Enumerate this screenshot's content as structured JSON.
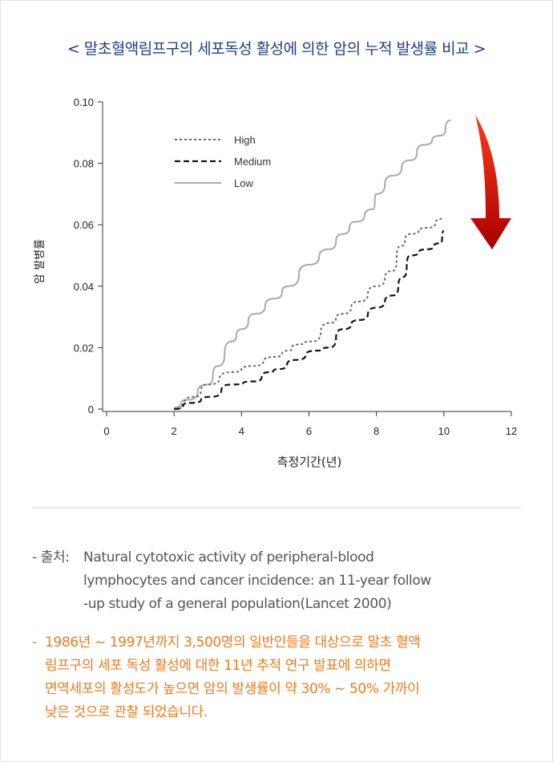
{
  "title": "< 말초혈액림프구의 세포독성 활성에 의한 암의 누적 발생률 비교 >",
  "chart_data": {
    "type": "line",
    "title": "< 말초혈액림프구의 세포독성 활성에 의한 암의 누적 발생률 비교 >",
    "xlabel": "측정기간(년)",
    "ylabel": "암 발병률",
    "xlim": [
      0,
      12
    ],
    "ylim": [
      0,
      0.1
    ],
    "xticks": [
      "0",
      "2",
      "4",
      "6",
      "8",
      "10",
      "12"
    ],
    "yticks": [
      "0",
      "0.02",
      "0.04",
      "0.06",
      "0.08",
      "0.10"
    ],
    "grid": false,
    "legend_position": "top-left",
    "series": [
      {
        "name": "High",
        "style": "dotted",
        "color": "#666666",
        "x": [
          2,
          2.6,
          3,
          3.7,
          4.3,
          5,
          5.4,
          5.6,
          6.1,
          6.6,
          7,
          7.5,
          8,
          8.5,
          8.7,
          9,
          9.5,
          10
        ],
        "y": [
          0,
          0.004,
          0.008,
          0.012,
          0.014,
          0.017,
          0.019,
          0.021,
          0.022,
          0.028,
          0.031,
          0.035,
          0.04,
          0.045,
          0.053,
          0.057,
          0.059,
          0.062
        ]
      },
      {
        "name": "Medium",
        "style": "dashed",
        "color": "#111111",
        "x": [
          2,
          2.5,
          3.1,
          3.7,
          4.4,
          4.8,
          5.1,
          5.6,
          6.2,
          6.6,
          7,
          7.5,
          8,
          8.5,
          8.8,
          9,
          9.5,
          9.9,
          10
        ],
        "y": [
          0,
          0.002,
          0.004,
          0.008,
          0.009,
          0.012,
          0.013,
          0.016,
          0.019,
          0.02,
          0.026,
          0.029,
          0.033,
          0.037,
          0.043,
          0.05,
          0.052,
          0.054,
          0.058
        ]
      },
      {
        "name": "Low",
        "style": "solid",
        "color": "#aaaaaa",
        "x": [
          2,
          2.4,
          3,
          3.3,
          3.7,
          4,
          4.4,
          5,
          5.4,
          6,
          6.6,
          7,
          7.4,
          7.9,
          8,
          8.5,
          9,
          9.4,
          9.9,
          10.2
        ],
        "y": [
          0.0005,
          0.003,
          0.008,
          0.014,
          0.022,
          0.026,
          0.031,
          0.036,
          0.04,
          0.047,
          0.052,
          0.057,
          0.061,
          0.065,
          0.07,
          0.076,
          0.081,
          0.086,
          0.089,
          0.094
        ]
      }
    ],
    "annotation": "red downward arrow"
  },
  "colors": {
    "title": "#1f3f80",
    "note": "#f07a1a",
    "arrow_top": "#ff3a1a",
    "arrow_bottom": "#a80000"
  },
  "source": {
    "lead": "- 출처:",
    "lines": [
      "Natural cytotoxic activity of peripheral-blood",
      "lymphocytes and cancer incidence: an 11-year follow",
      "-up study of a general population(Lancet 2000)"
    ]
  },
  "note": {
    "lead": "-",
    "lines": [
      "1986년 ~ 1997년까지 3,500명의 일반인들을 대상으로 말초 혈액",
      "림프구의 세포 독성 활성에 대한 11년 추적 연구 발표에 의하면",
      "면역세포의 활성도가 높으면 암의 발생률이 약 30% ~ 50% 가까이",
      "낮은 것으로 관찰 되었습니다."
    ]
  }
}
